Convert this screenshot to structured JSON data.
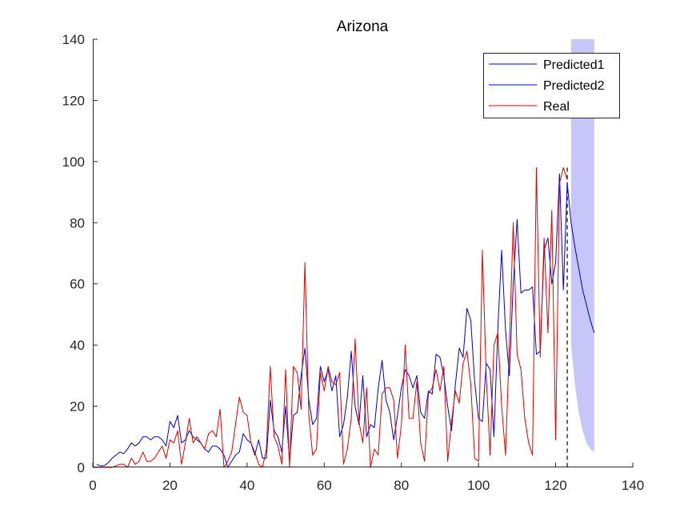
{
  "chart_data": {
    "type": "line",
    "title": "Arizona",
    "xlabel": "",
    "ylabel": "",
    "xlim": [
      0,
      140
    ],
    "ylim": [
      0,
      140
    ],
    "xticks": [
      0,
      20,
      40,
      60,
      80,
      100,
      120,
      140
    ],
    "yticks": [
      0,
      20,
      40,
      60,
      80,
      100,
      120,
      140
    ],
    "grid": false,
    "legend_position": "top-right",
    "legend": [
      "Predicted1",
      "Predicted2",
      "Real"
    ],
    "colors": {
      "predicted1": "#0000cc",
      "predicted2": "#0000cc",
      "real": "#e00000",
      "band": "#c6c6f8",
      "forecast_line": "#000000",
      "axis": "#262626"
    },
    "forecast_start_x": 123,
    "series": [
      {
        "name": "Predicted1",
        "role": "fit",
        "x": [
          1,
          2,
          3,
          4,
          5,
          6,
          7,
          8,
          9,
          10,
          11,
          12,
          13,
          14,
          15,
          16,
          17,
          18,
          19,
          20,
          21,
          22,
          23,
          24,
          25,
          26,
          27,
          28,
          29,
          30,
          31,
          32,
          33,
          34,
          35,
          36,
          37,
          38,
          39,
          40,
          41,
          42,
          43,
          44,
          45,
          46,
          47,
          48,
          49,
          50,
          51,
          52,
          53,
          54,
          55,
          56,
          57,
          58,
          59,
          60,
          61,
          62,
          63,
          64,
          65,
          66,
          67,
          68,
          69,
          70,
          71,
          72,
          73,
          74,
          75,
          76,
          77,
          78,
          79,
          80,
          81,
          82,
          83,
          84,
          85,
          86,
          87,
          88,
          89,
          90,
          91,
          92,
          93,
          94,
          95,
          96,
          97,
          98,
          99,
          100,
          101,
          102,
          103,
          104,
          105,
          106,
          107,
          108,
          109,
          110,
          111,
          112,
          113,
          114,
          115,
          116,
          117,
          118,
          119,
          120,
          121,
          122,
          123
        ],
        "y": [
          1,
          0.5,
          0.6,
          1.5,
          3,
          4,
          5,
          4.5,
          6,
          8,
          7,
          8,
          10,
          10,
          9,
          10,
          10,
          9,
          7,
          15,
          13,
          17,
          8,
          9,
          12,
          10,
          9,
          8,
          6,
          5,
          7,
          7,
          6,
          4,
          0,
          2,
          4,
          5,
          11,
          9,
          8,
          4,
          9,
          3,
          3,
          22,
          12,
          10,
          5,
          20,
          2,
          17,
          18,
          30,
          39,
          22,
          14,
          16,
          33,
          28,
          32,
          25,
          30,
          10,
          14,
          23,
          38,
          20,
          14,
          30,
          10,
          14,
          13,
          26,
          35,
          22,
          18,
          9,
          17,
          26,
          32,
          30,
          26,
          30,
          18,
          16,
          25,
          24,
          37,
          36,
          30,
          20,
          12,
          27,
          39,
          36,
          52,
          48,
          28,
          16,
          15,
          34,
          32,
          10,
          45,
          71,
          45,
          30,
          60,
          81,
          57,
          58,
          58,
          59,
          37,
          38,
          71,
          75,
          60,
          67,
          96,
          58,
          93
        ]
      },
      {
        "name": "Predicted2",
        "role": "forecast",
        "x": [
          123,
          124,
          125,
          126,
          127,
          128,
          129,
          130
        ],
        "y": [
          93,
          80,
          72,
          65,
          58,
          53,
          48,
          44
        ]
      },
      {
        "name": "Real",
        "role": "observed",
        "x": [
          1,
          2,
          3,
          4,
          5,
          6,
          7,
          8,
          9,
          10,
          11,
          12,
          13,
          14,
          15,
          16,
          17,
          18,
          19,
          20,
          21,
          22,
          23,
          24,
          25,
          26,
          27,
          28,
          29,
          30,
          31,
          32,
          33,
          34,
          35,
          36,
          37,
          38,
          39,
          40,
          41,
          42,
          43,
          44,
          45,
          46,
          47,
          48,
          49,
          50,
          51,
          52,
          53,
          54,
          55,
          56,
          57,
          58,
          59,
          60,
          61,
          62,
          63,
          64,
          65,
          66,
          67,
          68,
          69,
          70,
          71,
          72,
          73,
          74,
          75,
          76,
          77,
          78,
          79,
          80,
          81,
          82,
          83,
          84,
          85,
          86,
          87,
          88,
          89,
          90,
          91,
          92,
          93,
          94,
          95,
          96,
          97,
          98,
          99,
          100,
          101,
          102,
          103,
          104,
          105,
          106,
          107,
          108,
          109,
          110,
          111,
          112,
          113,
          114,
          115,
          116,
          117,
          118,
          119,
          120,
          121,
          122,
          123
        ],
        "y": [
          0,
          0,
          0,
          0,
          0,
          0.5,
          1,
          1,
          0,
          3,
          1,
          2,
          5,
          2,
          2,
          3,
          5,
          7,
          3,
          9,
          8,
          12,
          1,
          8,
          16,
          8,
          10,
          8,
          6,
          11,
          12,
          10,
          19,
          0,
          2,
          5,
          14,
          23,
          18,
          17,
          8,
          5,
          1,
          0,
          6,
          33,
          10,
          7,
          1,
          32,
          0,
          33,
          31,
          19,
          67,
          17,
          4,
          6,
          31,
          25,
          33,
          28,
          27,
          31,
          1,
          6,
          16,
          42,
          15,
          8,
          26,
          0,
          6,
          4,
          24,
          26,
          26,
          22,
          3,
          14,
          40,
          16,
          16,
          28,
          8,
          2,
          24,
          26,
          32,
          25,
          33,
          2,
          15,
          25,
          21,
          34,
          38,
          27,
          3,
          2,
          71,
          30,
          4,
          40,
          44,
          20,
          4,
          40,
          80,
          37,
          32,
          16,
          8,
          4,
          98,
          36,
          75,
          44,
          84,
          9,
          93,
          98,
          94
        ]
      }
    ],
    "bands": [
      {
        "name": "forecast-interval",
        "x": [
          124,
          125,
          126,
          127,
          128,
          129,
          130
        ],
        "upper": [
          140,
          140,
          140,
          140,
          140,
          140,
          140
        ],
        "lower": [
          40,
          27,
          18,
          12,
          8,
          6,
          5
        ]
      }
    ]
  }
}
